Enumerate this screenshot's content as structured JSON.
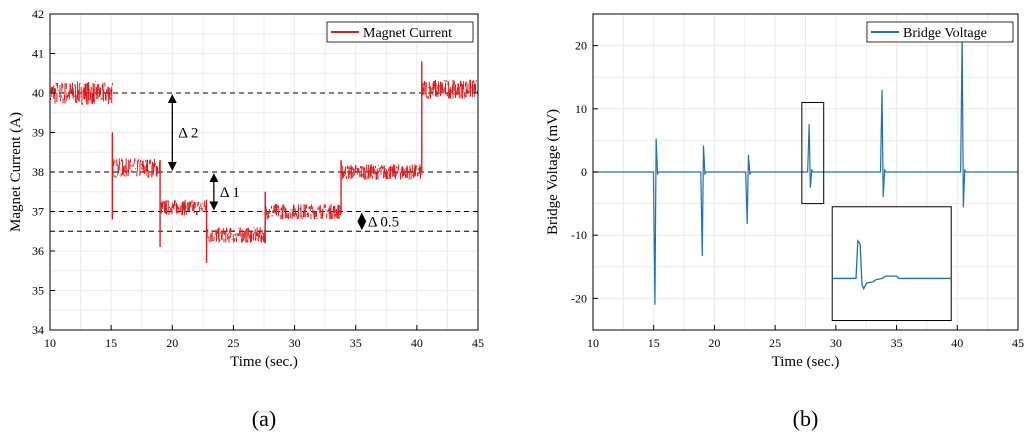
{
  "chart_data": [
    {
      "type": "line",
      "panel_label": "(a)",
      "xlabel": "Time (sec.)",
      "ylabel": "Magnet Current (A)",
      "xlim": [
        10,
        45
      ],
      "ylim": [
        34,
        42
      ],
      "xticks": [
        10,
        15,
        20,
        25,
        30,
        35,
        40,
        45
      ],
      "yticks": [
        34,
        35,
        36,
        37,
        38,
        39,
        40,
        41,
        42
      ],
      "grid": true,
      "legend": "top-right",
      "series": [
        {
          "name": "Magnet Current",
          "color": "#e31a1c",
          "style": "noisy-step",
          "segments": [
            {
              "x0": 10,
              "x1": 15.1,
              "level": 40.0,
              "noise": 0.3
            },
            {
              "x0": 15.1,
              "x1": 19.0,
              "level": 38.1,
              "noise": 0.25
            },
            {
              "x0": 19.0,
              "x1": 22.8,
              "level": 37.1,
              "noise": 0.2
            },
            {
              "x0": 22.8,
              "x1": 27.6,
              "level": 36.4,
              "noise": 0.2
            },
            {
              "x0": 27.6,
              "x1": 33.8,
              "level": 37.0,
              "noise": 0.2
            },
            {
              "x0": 33.8,
              "x1": 40.4,
              "level": 38.0,
              "noise": 0.2
            },
            {
              "x0": 40.4,
              "x1": 45,
              "level": 40.1,
              "noise": 0.25
            }
          ],
          "spikes": [
            {
              "x": 15.1,
              "y_min": 36.8,
              "y_max": 39.0
            },
            {
              "x": 19.0,
              "y_min": 36.1,
              "y_max": 38.3
            },
            {
              "x": 22.8,
              "y_min": 35.7,
              "y_max": 37.3
            },
            {
              "x": 27.6,
              "y_min": 36.2,
              "y_max": 37.5
            },
            {
              "x": 33.8,
              "y_min": 37.0,
              "y_max": 38.3
            },
            {
              "x": 40.4,
              "y_min": 38.0,
              "y_max": 40.8
            }
          ]
        }
      ],
      "reference_lines": [
        40,
        38,
        37,
        36.5
      ],
      "annotations": [
        {
          "label": "Δ 2",
          "x": 20.0,
          "y_from": 40,
          "y_to": 38
        },
        {
          "label": "Δ 1",
          "x": 23.4,
          "y_from": 38,
          "y_to": 37
        },
        {
          "label": "Δ 0.5",
          "x": 35.5,
          "y_from": 37,
          "y_to": 36.5
        }
      ]
    },
    {
      "type": "line",
      "panel_label": "(b)",
      "xlabel": "Time (sec.)",
      "ylabel": "Bridge Voltage (mV)",
      "xlim": [
        10,
        45
      ],
      "ylim": [
        -25,
        25
      ],
      "xticks": [
        10,
        15,
        20,
        25,
        30,
        35,
        40,
        45
      ],
      "yticks": [
        -20,
        -10,
        0,
        10,
        20
      ],
      "grid": true,
      "legend": "top-right",
      "series": [
        {
          "name": "Bridge Voltage",
          "color": "#1f6fb2",
          "baseline": 0,
          "spikes": [
            {
              "x": 15.1,
              "y_min": -21,
              "y_max": 5.3
            },
            {
              "x": 19.0,
              "y_min": -13.3,
              "y_max": 4.2
            },
            {
              "x": 22.7,
              "y_min": -8.2,
              "y_max": 2.7
            },
            {
              "x": 27.8,
              "y_min": -2.5,
              "y_max": 7.6
            },
            {
              "x": 33.8,
              "y_min": -4.0,
              "y_max": 13.0
            },
            {
              "x": 40.4,
              "y_min": -5.6,
              "y_max": 21.5
            }
          ]
        }
      ],
      "highlight_box": {
        "x0": 27.2,
        "x1": 29.0,
        "y0": -5.0,
        "y1": 11.0
      },
      "inset": {
        "description": "zoom of spike",
        "x0": 29.7,
        "x1": 39.5,
        "y0": -23.5,
        "y1": -5.5
      }
    }
  ]
}
